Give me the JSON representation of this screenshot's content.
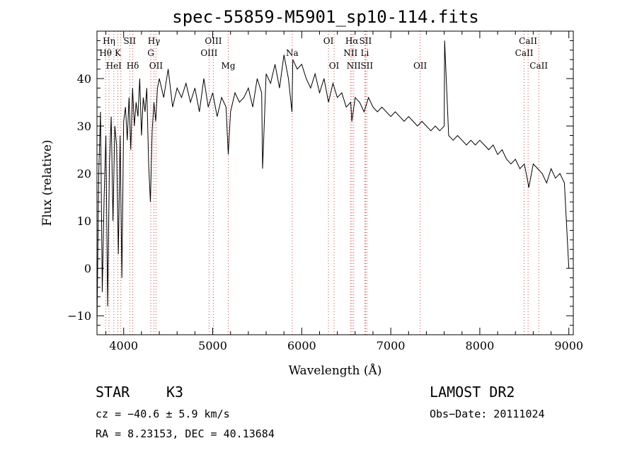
{
  "chart_data": {
    "type": "line",
    "title": "spec-55859-M5901_sp10-114.fits",
    "xlabel": "Wavelength (Å)",
    "ylabel": "Flux (relative)",
    "xlim": [
      3700,
      9050
    ],
    "ylim": [
      -14,
      50
    ],
    "xticks": [
      4000,
      5000,
      6000,
      7000,
      8000,
      9000
    ],
    "yticks": [
      -10,
      0,
      10,
      20,
      30,
      40
    ],
    "grid": false,
    "series": [
      {
        "x": [
          3700,
          3720,
          3740,
          3760,
          3780,
          3800,
          3820,
          3840,
          3860,
          3880,
          3900,
          3920,
          3940,
          3960,
          3980,
          4000,
          4020,
          4040,
          4060,
          4080,
          4100,
          4120,
          4140,
          4160,
          4180,
          4200,
          4220,
          4240,
          4260,
          4280,
          4300,
          4320,
          4340,
          4360,
          4380,
          4400,
          4450,
          4500,
          4550,
          4600,
          4650,
          4700,
          4750,
          4800,
          4850,
          4900,
          4950,
          5000,
          5050,
          5100,
          5150,
          5175,
          5200,
          5250,
          5300,
          5350,
          5400,
          5450,
          5500,
          5550,
          5560,
          5600,
          5650,
          5700,
          5750,
          5800,
          5850,
          5890,
          5900,
          5950,
          6000,
          6050,
          6100,
          6150,
          6200,
          6250,
          6300,
          6350,
          6400,
          6450,
          6500,
          6550,
          6563,
          6600,
          6650,
          6700,
          6750,
          6800,
          6850,
          6900,
          6950,
          7000,
          7050,
          7100,
          7150,
          7200,
          7250,
          7300,
          7350,
          7400,
          7450,
          7500,
          7550,
          7600,
          7605,
          7650,
          7700,
          7750,
          7800,
          7850,
          7900,
          7950,
          8000,
          8050,
          8100,
          8150,
          8200,
          8250,
          8300,
          8350,
          8400,
          8450,
          8500,
          8542,
          8550,
          8600,
          8650,
          8700,
          8750,
          8800,
          8850,
          8900,
          8950,
          9000
        ],
        "y": [
          -12,
          20,
          33,
          -5,
          15,
          28,
          -8,
          22,
          32,
          10,
          30,
          26,
          3,
          28,
          -2,
          31,
          34,
          27,
          36,
          25,
          38,
          30,
          35,
          32,
          40,
          28,
          36,
          33,
          38,
          22,
          14,
          29,
          35,
          31,
          38,
          40,
          36,
          42,
          34,
          38,
          36,
          39,
          35,
          38,
          33,
          40,
          34,
          37,
          32,
          36,
          34,
          24,
          33,
          37,
          35,
          36,
          38,
          34,
          40,
          37,
          21,
          41,
          39,
          43,
          38,
          45,
          40,
          33,
          44,
          42,
          43,
          40,
          38,
          41,
          37,
          40,
          35,
          39,
          36,
          37,
          34,
          35,
          31,
          36,
          35,
          33,
          36,
          34,
          33,
          34,
          33,
          32,
          33,
          32,
          31,
          32,
          31,
          30,
          31,
          30,
          29,
          30,
          29,
          30,
          48,
          28,
          27,
          28,
          27,
          26,
          27,
          26,
          27,
          26,
          25,
          26,
          24,
          25,
          23,
          22,
          23,
          21,
          22,
          18,
          17,
          22,
          21,
          20,
          18,
          21,
          19,
          20,
          18,
          0
        ]
      }
    ],
    "line_labels": [
      {
        "text": "Hη",
        "x": 3835,
        "row": 1
      },
      {
        "text": "Hθ",
        "x": 3797,
        "row": 2
      },
      {
        "text": "K",
        "x": 3934,
        "row": 2
      },
      {
        "text": "HeI",
        "x": 3889,
        "row": 3
      },
      {
        "text": "SII",
        "x": 4068,
        "row": 1
      },
      {
        "text": "Hδ",
        "x": 4102,
        "row": 3
      },
      {
        "text": "Hγ",
        "x": 4340,
        "row": 1
      },
      {
        "text": "G",
        "x": 4305,
        "row": 2
      },
      {
        "text": "OII",
        "x": 4363,
        "row": 3
      },
      {
        "text": "OIII",
        "x": 5007,
        "row": 1
      },
      {
        "text": "OIII",
        "x": 4959,
        "row": 2
      },
      {
        "text": "Mg",
        "x": 5175,
        "row": 3
      },
      {
        "text": "Na",
        "x": 5893,
        "row": 2
      },
      {
        "text": "OI",
        "x": 6300,
        "row": 1
      },
      {
        "text": "OI",
        "x": 6363,
        "row": 3
      },
      {
        "text": "Hα",
        "x": 6563,
        "row": 1
      },
      {
        "text": "SII",
        "x": 6716,
        "row": 1
      },
      {
        "text": "NII",
        "x": 6548,
        "row": 2
      },
      {
        "text": "Li",
        "x": 6708,
        "row": 2
      },
      {
        "text": "NII",
        "x": 6584,
        "row": 3
      },
      {
        "text": "SII",
        "x": 6731,
        "row": 3
      },
      {
        "text": "OII",
        "x": 7330,
        "row": 3
      },
      {
        "text": "CaII",
        "x": 8542,
        "row": 1
      },
      {
        "text": "CaII",
        "x": 8498,
        "row": 2
      },
      {
        "text": "CaII",
        "x": 8662,
        "row": 3
      }
    ],
    "line_markers": [
      3797,
      3835,
      3889,
      3934,
      3968,
      4068,
      4102,
      4305,
      4340,
      4363,
      4959,
      5007,
      5175,
      5893,
      6300,
      6363,
      6548,
      6563,
      6584,
      6708,
      6716,
      6731,
      7330,
      8498,
      8542,
      8662
    ]
  },
  "footer": {
    "object_class": "STAR",
    "subclass": "K3",
    "survey": "LAMOST DR2",
    "cz": "cz = −40.6 ± 5.9 km/s",
    "obs_date": "Obs−Date: 20111024",
    "coords": "RA =   8.23153, DEC =  40.13684"
  }
}
